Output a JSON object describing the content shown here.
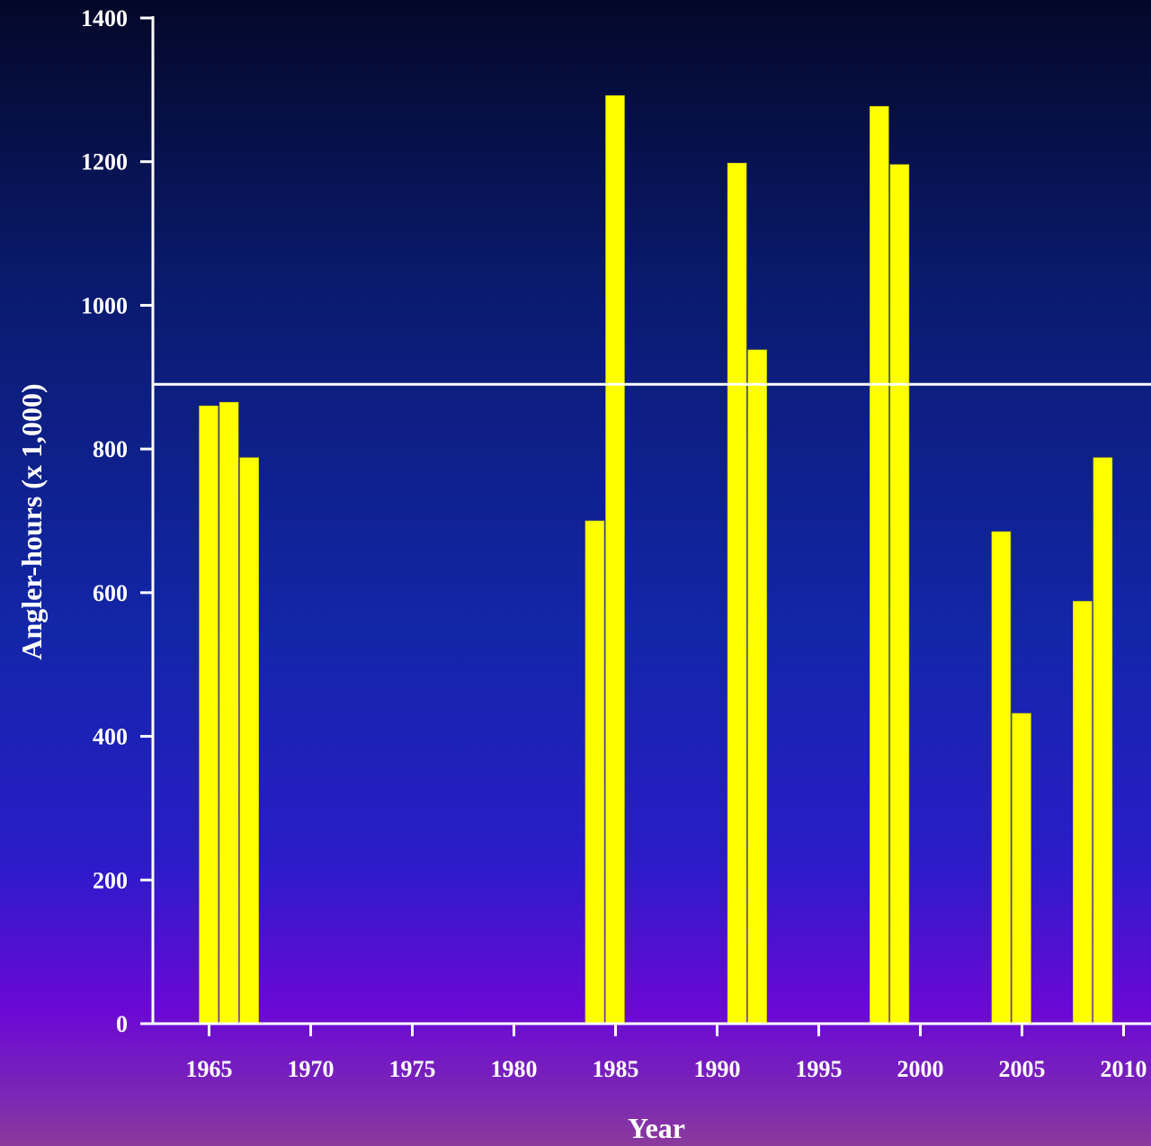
{
  "chart_data": {
    "type": "bar",
    "title": "",
    "xlabel": "Year",
    "ylabel": "Angler-hours (x 1,000)",
    "xlim": [
      1962.5,
      2011
    ],
    "ylim": [
      0,
      1400
    ],
    "x_ticks": [
      1965,
      1970,
      1975,
      1980,
      1985,
      1990,
      1995,
      2000,
      2005,
      2010
    ],
    "y_ticks": [
      0,
      200,
      400,
      600,
      800,
      1000,
      1200,
      1400
    ],
    "grid": false,
    "legend": "none",
    "bar_color": "#ffff00",
    "reference_line": {
      "value": 890,
      "color": "#ffffff"
    },
    "series": [
      {
        "x": [
          1965,
          1966,
          1967,
          1984,
          1985,
          1991,
          1992,
          1998,
          1999,
          2004,
          2005,
          2008,
          2009
        ],
        "values": [
          860,
          865,
          788,
          700,
          1292,
          1198,
          938,
          1277,
          1196,
          685,
          432,
          588,
          788
        ]
      }
    ]
  }
}
